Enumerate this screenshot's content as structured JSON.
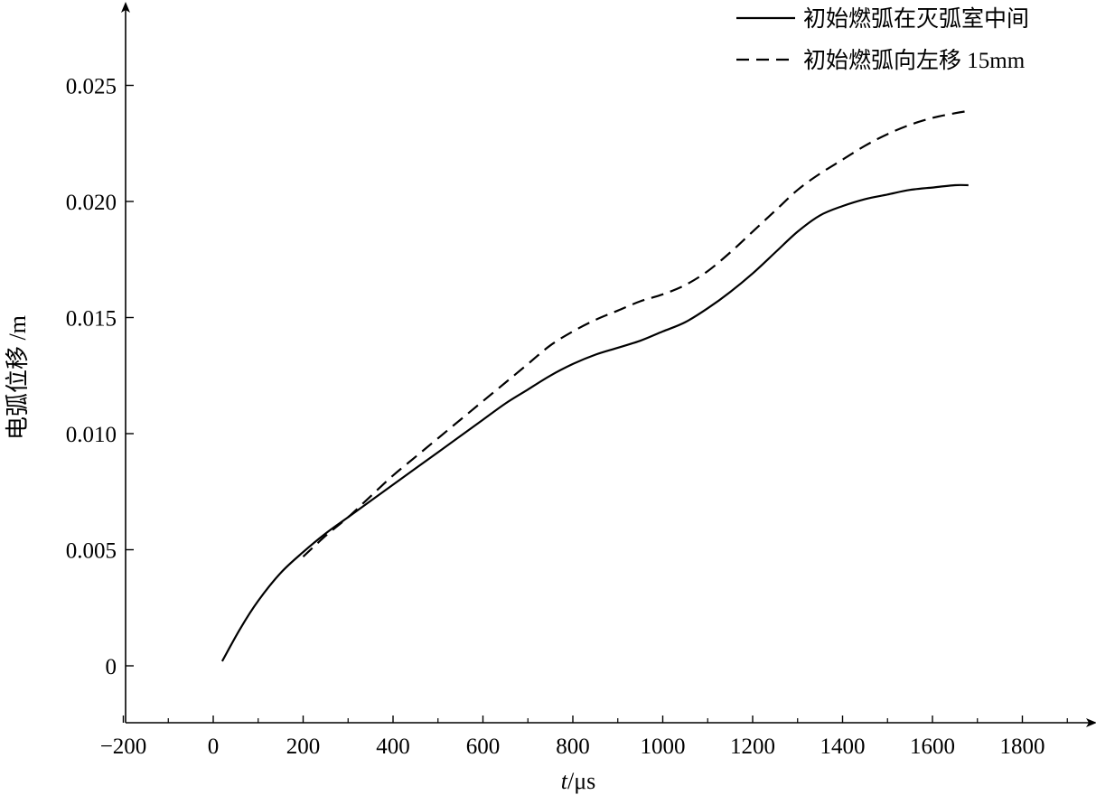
{
  "chart_data": {
    "type": "line",
    "xlabel_italic": "t",
    "xlabel_rest": "/μs",
    "ylabel": "电弧位移 /m",
    "xlim": [
      -200,
      1900
    ],
    "ylim": [
      -0.0025,
      0.0278
    ],
    "x_ticks": [
      -200,
      0,
      200,
      400,
      600,
      800,
      1000,
      1200,
      1400,
      1600,
      1800
    ],
    "x_tick_labels": [
      "−200",
      "0",
      "200",
      "400",
      "600",
      "800",
      "1000",
      "1200",
      "1400",
      "1600",
      "1800"
    ],
    "y_ticks": [
      0,
      0.005,
      0.01,
      0.015,
      0.02,
      0.025
    ],
    "y_tick_labels": [
      "0",
      "0.005",
      "0.010",
      "0.015",
      "0.020",
      "0.025"
    ],
    "grid": false,
    "legend_position": "top-right",
    "series": [
      {
        "name": "初始燃弧在灭弧室中间",
        "style": "solid",
        "x": [
          20,
          60,
          100,
          150,
          200,
          250,
          300,
          350,
          400,
          450,
          500,
          550,
          600,
          650,
          700,
          750,
          800,
          850,
          900,
          950,
          1000,
          1050,
          1100,
          1150,
          1200,
          1250,
          1300,
          1350,
          1400,
          1450,
          1500,
          1550,
          1600,
          1650,
          1680
        ],
        "y": [
          0.0002,
          0.0016,
          0.0028,
          0.004,
          0.0049,
          0.0057,
          0.0064,
          0.0071,
          0.0078,
          0.0085,
          0.0092,
          0.0099,
          0.0106,
          0.0113,
          0.0119,
          0.0125,
          0.013,
          0.0134,
          0.0137,
          0.014,
          0.0144,
          0.0148,
          0.0154,
          0.0161,
          0.0169,
          0.0178,
          0.0187,
          0.0194,
          0.0198,
          0.0201,
          0.0203,
          0.0205,
          0.0206,
          0.0207,
          0.0207
        ]
      },
      {
        "name": "初始燃弧向左移 15mm",
        "style": "dashed",
        "x": [
          200,
          250,
          300,
          350,
          400,
          450,
          500,
          550,
          600,
          650,
          700,
          750,
          800,
          850,
          900,
          950,
          1000,
          1050,
          1100,
          1150,
          1200,
          1250,
          1300,
          1350,
          1400,
          1450,
          1500,
          1550,
          1600,
          1650,
          1680
        ],
        "y": [
          0.0047,
          0.0056,
          0.0064,
          0.0073,
          0.0082,
          0.009,
          0.0098,
          0.0106,
          0.0114,
          0.0122,
          0.013,
          0.0138,
          0.0144,
          0.0149,
          0.0153,
          0.0157,
          0.016,
          0.0164,
          0.017,
          0.0178,
          0.0187,
          0.0196,
          0.0205,
          0.0212,
          0.0218,
          0.0224,
          0.0229,
          0.0233,
          0.0236,
          0.0238,
          0.0239
        ]
      }
    ]
  }
}
